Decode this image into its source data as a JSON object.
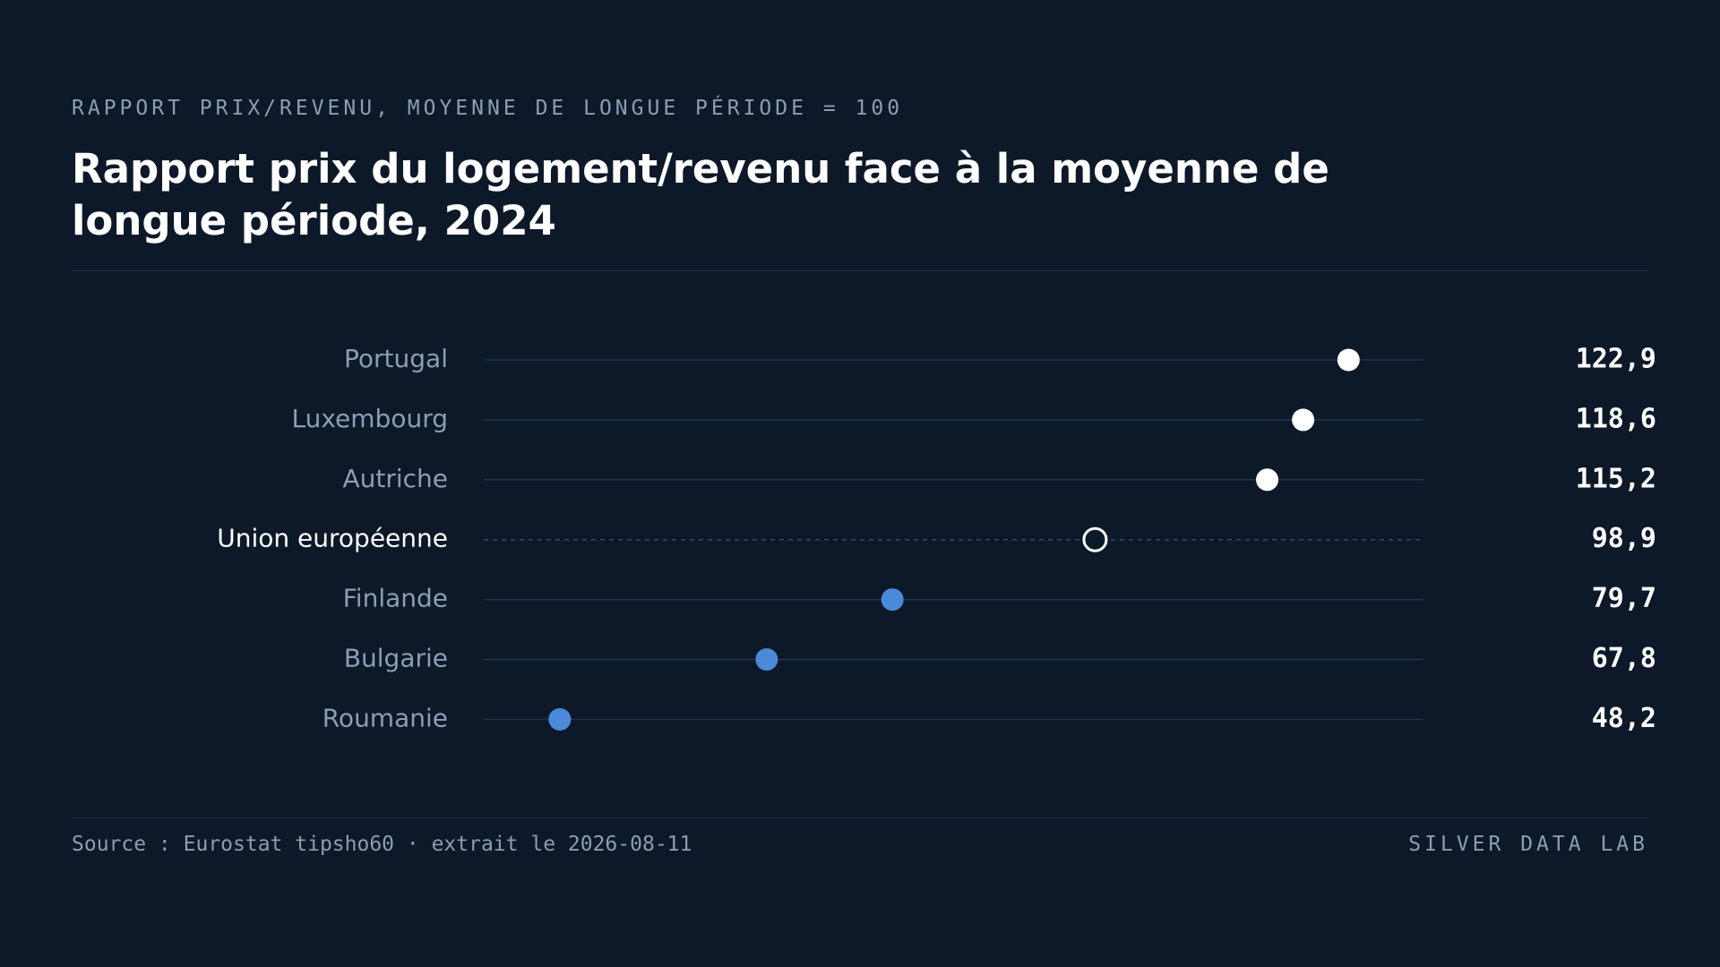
{
  "subtitle": "RAPPORT PRIX/REVENU, MOYENNE DE LONGUE PÉRIODE = 100",
  "chart_data": {
    "type": "dot",
    "title": "Rapport prix du logement/revenu face à la moyenne de longue période, 2024",
    "categories": [
      "Portugal",
      "Luxembourg",
      "Autriche",
      "Union européenne",
      "Finlande",
      "Bulgarie",
      "Roumanie"
    ],
    "values": [
      122.9,
      118.6,
      115.2,
      98.9,
      79.7,
      67.8,
      48.2
    ],
    "value_labels": [
      "122,9",
      "118,6",
      "115,2",
      "98,9",
      "79,7",
      "67,8",
      "48,2"
    ],
    "colors": [
      "#ffffff",
      "#ffffff",
      "#ffffff",
      "#ffffff",
      "#4a8ad8",
      "#4a8ad8",
      "#4a8ad8"
    ],
    "hollow": [
      false,
      false,
      false,
      true,
      false,
      false,
      false
    ],
    "xlim": [
      41,
      130
    ]
  },
  "footer": {
    "source": "Source : Eurostat tipsho60 · extrait le 2026-08-11",
    "brand": "SILVER DATA LAB"
  }
}
